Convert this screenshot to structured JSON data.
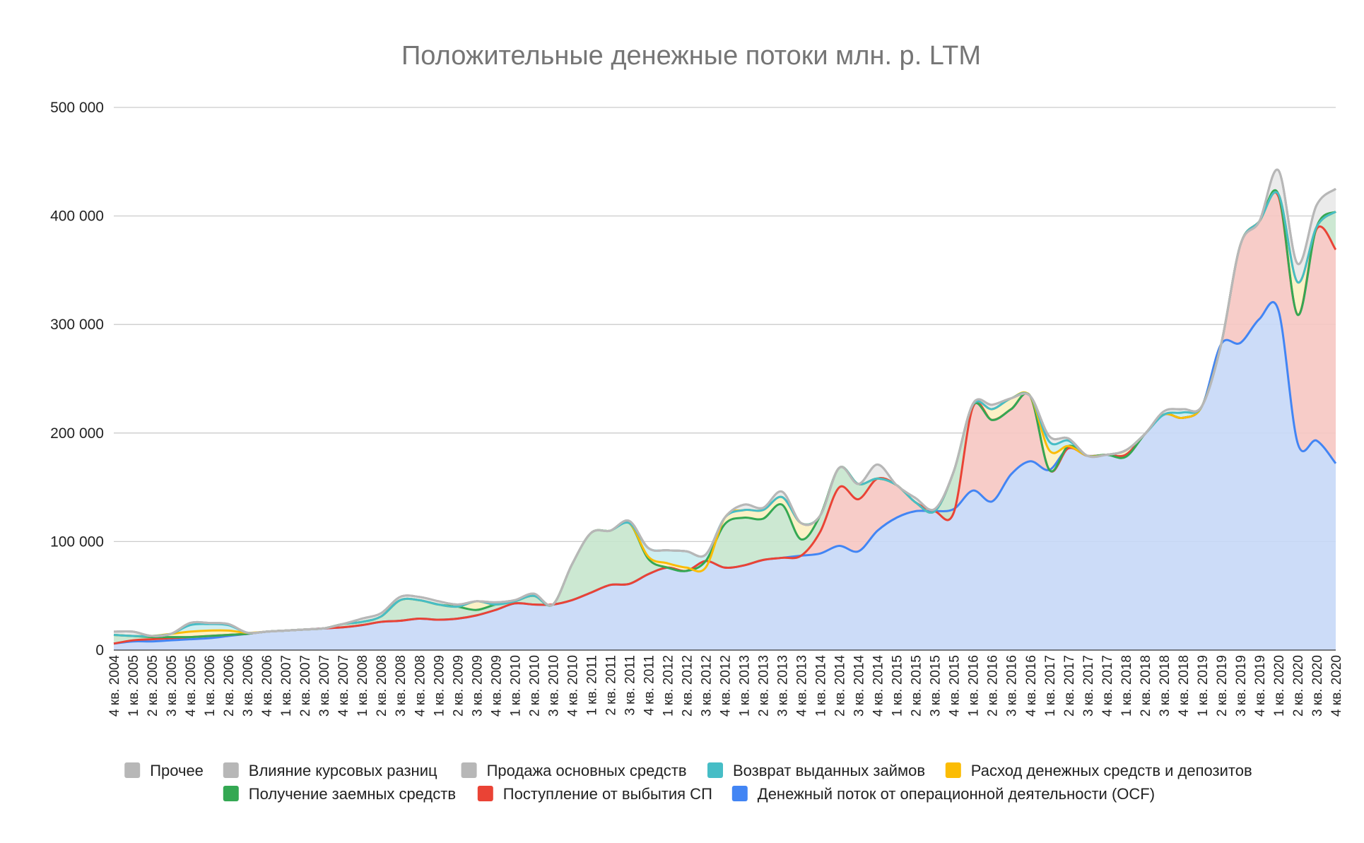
{
  "chart_data": {
    "type": "area",
    "title": "Положительные денежные потоки млн. р. LTM",
    "xlabel": "",
    "ylabel": "",
    "ylim": [
      0,
      500000
    ],
    "yticks": [
      {
        "value": 0,
        "label": "0"
      },
      {
        "value": 100000,
        "label": "100 000"
      },
      {
        "value": 200000,
        "label": "200 000"
      },
      {
        "value": 300000,
        "label": "300 000"
      },
      {
        "value": 400000,
        "label": "400 000"
      },
      {
        "value": 500000,
        "label": "500 000"
      }
    ],
    "grid": true,
    "stacked": true,
    "legend_position": "bottom",
    "categories": [
      "4 кв. 2004",
      "1 кв. 2005",
      "2 кв. 2005",
      "3 кв. 2005",
      "4 кв. 2005",
      "1 кв. 2006",
      "2 кв. 2006",
      "3 кв. 2006",
      "4 кв. 2006",
      "1 кв. 2007",
      "2 кв. 2007",
      "3 кв. 2007",
      "4 кв. 2007",
      "1 кв. 2008",
      "2 кв. 2008",
      "3 кв. 2008",
      "4 кв. 2008",
      "1 кв. 2009",
      "2 кв. 2009",
      "3 кв. 2009",
      "4 кв. 2009",
      "1 кв. 2010",
      "2 кв. 2010",
      "3 кв. 2010",
      "4 кв. 2010",
      "1 кв. 2011",
      "2 кв. 2011",
      "3 кв. 2011",
      "4 кв. 2011",
      "1 кв. 2012",
      "2 кв. 2012",
      "3 кв. 2012",
      "4 кв. 2012",
      "1 кв. 2013",
      "2 кв. 2013",
      "3 кв. 2013",
      "4 кв. 2013",
      "1 кв. 2014",
      "2 кв. 2014",
      "3 кв. 2014",
      "4 кв. 2014",
      "1 кв. 2015",
      "2 кв. 2015",
      "3 кв. 2015",
      "4 кв. 2015",
      "1 кв. 2016",
      "2 кв. 2016",
      "3 кв. 2016",
      "4 кв. 2016",
      "1 кв. 2017",
      "2 кв. 2017",
      "3 кв. 2017",
      "4 кв. 2017",
      "1 кв. 2018",
      "2 кв. 2018",
      "3 кв. 2018",
      "4 кв. 2018",
      "1 кв. 2019",
      "2 кв. 2019",
      "3 кв. 2019",
      "4 кв. 2019",
      "1 кв. 2020",
      "2 кв. 2020",
      "3 кв. 2020",
      "4 кв. 2020"
    ],
    "series": [
      {
        "name": "Денежный поток от операционной деятельности (OCF)",
        "color": "#4285f4",
        "fill": "#c6d8f7",
        "values": [
          6000,
          8000,
          8000,
          9000,
          10000,
          11000,
          13000,
          15000,
          17000,
          18000,
          19000,
          20000,
          21000,
          23000,
          26000,
          27000,
          29000,
          28000,
          29000,
          32000,
          37000,
          43000,
          42000,
          42000,
          46000,
          53000,
          60000,
          61000,
          70000,
          76000,
          73000,
          82000,
          76000,
          78000,
          83000,
          85000,
          87000,
          89000,
          96000,
          91000,
          110000,
          122000,
          128000,
          128000,
          130000,
          147000,
          137000,
          162000,
          174000,
          166000,
          186000,
          179000,
          180000,
          180000,
          199000,
          217000,
          214000,
          225000,
          282000,
          283000,
          305000,
          313000,
          191000,
          193000,
          172000
        ]
      },
      {
        "name": "Поступление от выбытия СП",
        "color": "#ea4335",
        "fill": "#f6c7c2",
        "values": [
          0,
          1000,
          2000,
          2000,
          2000,
          2000,
          1000,
          0,
          0,
          0,
          0,
          0,
          0,
          0,
          0,
          0,
          0,
          0,
          0,
          0,
          0,
          0,
          0,
          0,
          0,
          0,
          0,
          0,
          0,
          0,
          0,
          0,
          0,
          0,
          0,
          0,
          0,
          20000,
          54000,
          48000,
          48000,
          30000,
          8000,
          0,
          -3000,
          77000,
          75000,
          60000,
          60000,
          0,
          0,
          0,
          0,
          0,
          0,
          0,
          0,
          0,
          0,
          90000,
          90000,
          105000,
          118000,
          195000,
          197000
        ]
      },
      {
        "name": "Получение заемных средств",
        "color": "#34a853",
        "fill": "#c6e6cd",
        "values": [
          8000,
          4000,
          2000,
          1000,
          0,
          0,
          0,
          0,
          0,
          0,
          0,
          0,
          3000,
          3000,
          5000,
          19000,
          17000,
          14000,
          11000,
          5000,
          5000,
          2000,
          8000,
          0,
          33000,
          55000,
          50000,
          56000,
          14000,
          0,
          0,
          0,
          40000,
          44000,
          38000,
          49000,
          15000,
          15000,
          18000,
          14000,
          0,
          0,
          0,
          0,
          38000,
          2000,
          0,
          0,
          0,
          0,
          2000,
          0,
          0,
          -2000,
          0,
          0,
          0,
          0,
          0,
          0,
          0,
          2000,
          0,
          2000,
          35000
        ]
      },
      {
        "name": "Расход денежных средств и депозитов",
        "color": "#fbbc04",
        "fill": "#fcefc0",
        "values": [
          0,
          0,
          1000,
          3000,
          5000,
          5000,
          4000,
          1000,
          0,
          0,
          0,
          0,
          0,
          0,
          0,
          0,
          0,
          0,
          0,
          8000,
          0,
          0,
          0,
          0,
          0,
          0,
          0,
          0,
          2000,
          4000,
          3000,
          -6000,
          6000,
          7000,
          8000,
          7000,
          15000,
          0,
          0,
          0,
          0,
          0,
          0,
          0,
          0,
          0,
          10000,
          10000,
          0,
          18000,
          0,
          0,
          0,
          6000,
          0,
          0,
          0,
          0,
          0,
          0,
          0,
          0,
          30000,
          0,
          0
        ]
      },
      {
        "name": "Возврат выданных займов",
        "color": "#46bdc6",
        "fill": "#c9ecef",
        "values": [
          0,
          0,
          0,
          0,
          6000,
          6000,
          5000,
          0,
          0,
          0,
          0,
          0,
          0,
          0,
          0,
          0,
          0,
          0,
          0,
          0,
          0,
          0,
          0,
          0,
          0,
          0,
          0,
          0,
          8000,
          12000,
          15000,
          12000,
          0,
          0,
          0,
          0,
          0,
          0,
          0,
          0,
          0,
          0,
          0,
          0,
          0,
          0,
          0,
          0,
          0,
          8000,
          5000,
          0,
          0,
          0,
          0,
          0,
          5000,
          0,
          0,
          0,
          0,
          0,
          0,
          0,
          0
        ]
      },
      {
        "name": "Продажа основных средств",
        "color": "#b7b7b7",
        "fill": "#e9e9e9",
        "values": [
          3000,
          4000,
          0,
          0,
          2000,
          1000,
          1000,
          0,
          0,
          0,
          0,
          0,
          0,
          3000,
          3000,
          3000,
          3000,
          3000,
          2000,
          0,
          2000,
          1000,
          2000,
          0,
          0,
          0,
          0,
          2000,
          0,
          0,
          0,
          0,
          0,
          5000,
          2000,
          5000,
          0,
          0,
          0,
          0,
          13000,
          0,
          4000,
          2000,
          0,
          1000,
          4000,
          0,
          0,
          5000,
          2000,
          0,
          0,
          0,
          0,
          3000,
          3000,
          0,
          0,
          0,
          0,
          22000,
          17000,
          20000,
          21000
        ]
      },
      {
        "name": "Влияние курсовых разниц",
        "color": "#b7b7b7",
        "fill": "#eeeeee",
        "values": [
          0,
          0,
          0,
          0,
          0,
          0,
          0,
          0,
          0,
          0,
          0,
          0,
          0,
          0,
          0,
          0,
          0,
          0,
          0,
          0,
          0,
          0,
          0,
          0,
          0,
          0,
          0,
          0,
          0,
          0,
          0,
          0,
          0,
          0,
          0,
          0,
          0,
          0,
          0,
          0,
          0,
          0,
          0,
          0,
          0,
          0,
          0,
          0,
          0,
          0,
          0,
          0,
          0,
          0,
          0,
          0,
          0,
          0,
          0,
          0,
          0,
          0,
          0,
          0,
          0
        ]
      },
      {
        "name": "Прочее",
        "color": "#b7b7b7",
        "fill": "#f2f2f2",
        "values": [
          0,
          0,
          0,
          0,
          0,
          0,
          0,
          0,
          0,
          0,
          0,
          0,
          0,
          0,
          0,
          0,
          0,
          0,
          0,
          0,
          0,
          0,
          0,
          0,
          0,
          0,
          0,
          0,
          0,
          0,
          0,
          0,
          0,
          0,
          0,
          0,
          0,
          0,
          0,
          0,
          0,
          0,
          0,
          0,
          0,
          0,
          0,
          0,
          0,
          0,
          0,
          0,
          0,
          0,
          0,
          0,
          0,
          0,
          0,
          0,
          0,
          0,
          0,
          0,
          0
        ]
      }
    ],
    "legend": [
      {
        "label": "Прочее",
        "color": "#b7b7b7"
      },
      {
        "label": "Влияние курсовых разниц",
        "color": "#b7b7b7"
      },
      {
        "label": "Продажа основных средств",
        "color": "#b7b7b7"
      },
      {
        "label": "Возврат выданных займов",
        "color": "#46bdc6"
      },
      {
        "label": "Расход денежных средств и депозитов",
        "color": "#fbbc04"
      },
      {
        "label": "Получение заемных средств",
        "color": "#34a853"
      },
      {
        "label": "Поступление от выбытия СП",
        "color": "#ea4335"
      },
      {
        "label": "Денежный поток от операционной деятельности (OCF)",
        "color": "#4285f4"
      }
    ]
  }
}
